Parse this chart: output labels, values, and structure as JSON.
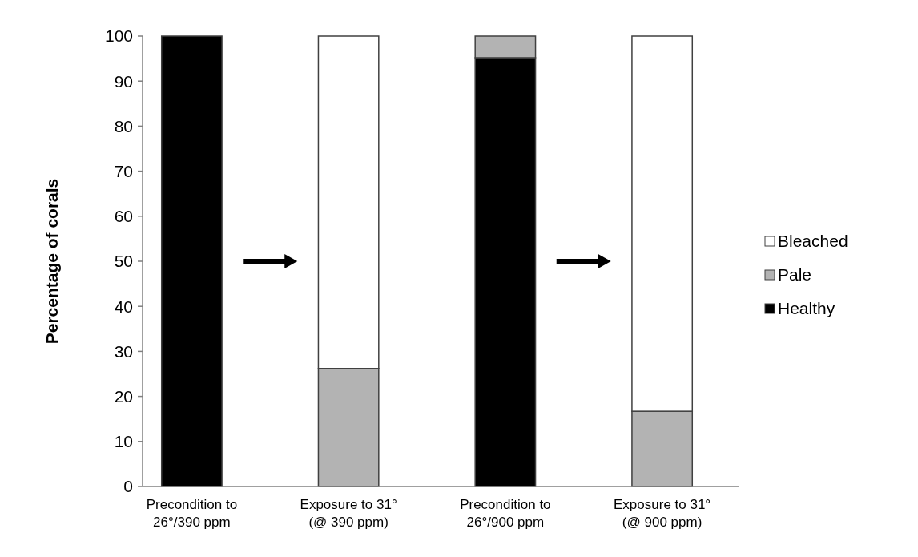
{
  "chart_data": {
    "type": "bar",
    "stacked": true,
    "ylabel": "Percentage of corals",
    "categories": [
      "Precondition to\n26°/390 ppm",
      "Exposure to 31°\n(@ 390 ppm)",
      "Precondition to\n26°/900 ppm",
      "Exposure to 31°\n(@ 900 ppm)"
    ],
    "series": [
      {
        "name": "Healthy",
        "color": "#000000",
        "values": [
          100,
          0,
          95.2,
          0
        ]
      },
      {
        "name": "Pale",
        "color": "#b3b3b3",
        "values": [
          0,
          26.2,
          4.8,
          16.7
        ]
      },
      {
        "name": "Bleached",
        "color": "#ffffff",
        "values": [
          0,
          73.8,
          0,
          83.3
        ]
      }
    ],
    "ylim": [
      0,
      100
    ],
    "yticks": [
      0,
      10,
      20,
      30,
      40,
      50,
      60,
      70,
      80,
      90,
      100
    ],
    "legend": "right",
    "grid": false
  }
}
